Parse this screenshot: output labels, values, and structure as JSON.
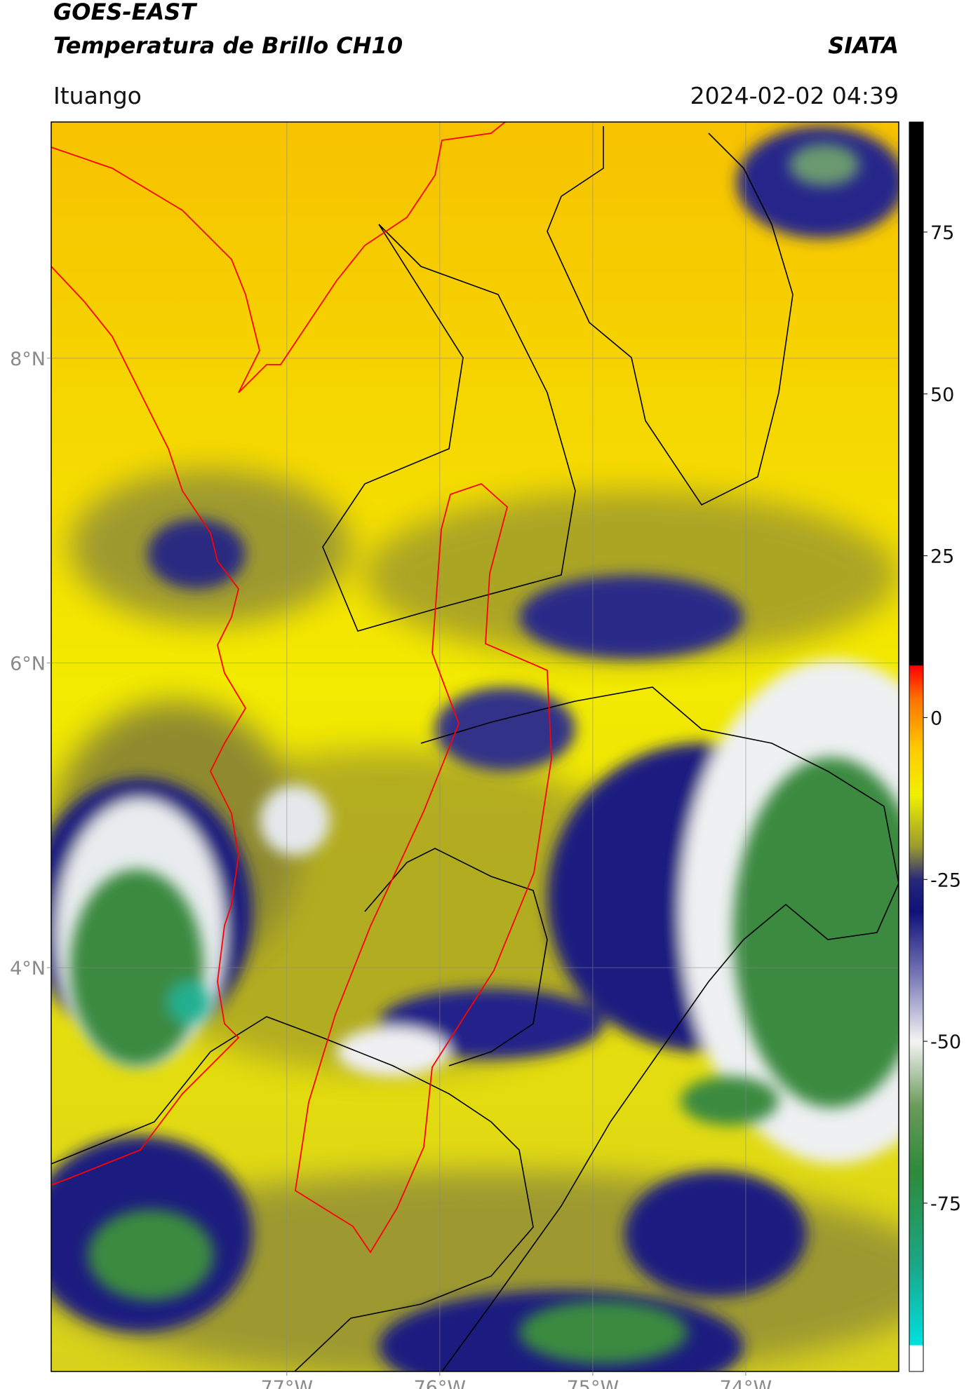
{
  "header": {
    "satellite": "GOES-EAST",
    "product": "Temperatura de Brillo CH10",
    "institution": "SIATA",
    "region": "Ituango",
    "datetime": "2024-02-02 04:39"
  },
  "map": {
    "lon_lim": [
      -78.54,
      -73.0
    ],
    "lat_lim": [
      1.35,
      9.55
    ],
    "lon_ticks": [
      {
        "value": -77,
        "label": "77°W"
      },
      {
        "value": -76,
        "label": "76°W"
      },
      {
        "value": -75,
        "label": "75°W"
      },
      {
        "value": -74,
        "label": "74°W"
      }
    ],
    "lat_ticks": [
      {
        "value": 8,
        "label": "8°N"
      },
      {
        "value": 6,
        "label": "6°N"
      },
      {
        "value": 4,
        "label": "4°N"
      }
    ]
  },
  "colorbar": {
    "lim": [
      -101,
      92
    ],
    "ticks": [
      75,
      50,
      25,
      0,
      -25,
      -50,
      -75
    ],
    "stops": [
      {
        "value": -101,
        "color": "#ffffff"
      },
      {
        "value": -97,
        "color": "#ffffff"
      },
      {
        "value": -96.9,
        "color": "#00e0e0"
      },
      {
        "value": -85,
        "color": "#1aa88a"
      },
      {
        "value": -70,
        "color": "#2e8a3a"
      },
      {
        "value": -60,
        "color": "#6a9a5a"
      },
      {
        "value": -50,
        "color": "#f4f4f4"
      },
      {
        "value": -40,
        "color": "#7a7ab8"
      },
      {
        "value": -30,
        "color": "#10107a"
      },
      {
        "value": -25,
        "color": "#28287a"
      },
      {
        "value": -20,
        "color": "#9a9a30"
      },
      {
        "value": -12,
        "color": "#f0f000"
      },
      {
        "value": -5,
        "color": "#ffcc00"
      },
      {
        "value": 3,
        "color": "#ff7000"
      },
      {
        "value": 8,
        "color": "#ff0000"
      },
      {
        "value": 8.1,
        "color": "#000000"
      },
      {
        "value": 92,
        "color": "#000000"
      }
    ]
  }
}
